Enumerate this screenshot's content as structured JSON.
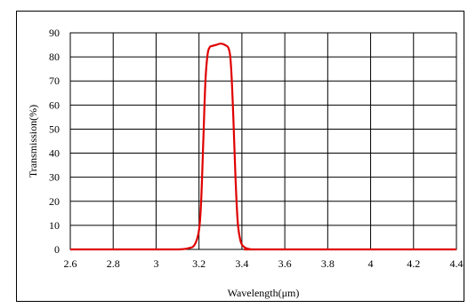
{
  "chart_data": {
    "type": "line",
    "xlabel": "Wavelength(μm)",
    "ylabel": "Transmission(%)",
    "xlim": [
      2.6,
      4.4
    ],
    "ylim": [
      0,
      90
    ],
    "xticks": [
      "2.6",
      "2.8",
      "3",
      "3.2",
      "3.4",
      "3.6",
      "3.8",
      "4",
      "4.2",
      "4.4"
    ],
    "yticks": [
      "0",
      "10",
      "20",
      "30",
      "40",
      "50",
      "60",
      "70",
      "80",
      "90"
    ],
    "grid": true,
    "legend": "none",
    "series": [
      {
        "color": "#e00000",
        "x": [
          2.6,
          3.0,
          3.1,
          3.15,
          3.18,
          3.2,
          3.21,
          3.22,
          3.23,
          3.24,
          3.25,
          3.26,
          3.28,
          3.3,
          3.32,
          3.34,
          3.35,
          3.36,
          3.37,
          3.38,
          3.39,
          3.4,
          3.42,
          3.45,
          3.5,
          4.4
        ],
        "y": [
          0,
          0,
          0,
          0.5,
          2,
          8,
          20,
          45,
          70,
          81,
          84,
          84.5,
          85,
          85.5,
          85,
          83,
          75,
          55,
          30,
          12,
          5,
          2,
          0.5,
          0,
          0,
          0
        ]
      }
    ]
  }
}
